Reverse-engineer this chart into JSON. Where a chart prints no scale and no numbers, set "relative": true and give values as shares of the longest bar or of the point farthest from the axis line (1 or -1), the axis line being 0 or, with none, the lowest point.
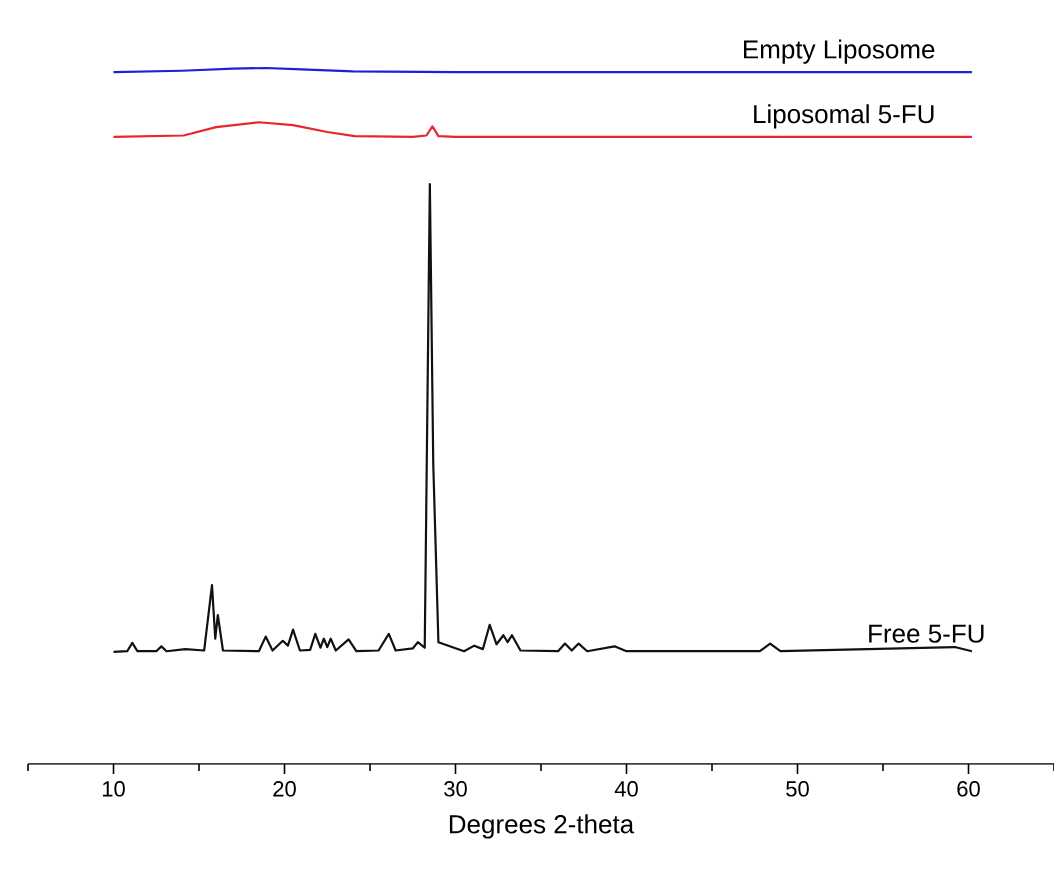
{
  "chart_data": {
    "type": "line",
    "relative": true,
    "xlabel": "Degrees 2-theta",
    "xlim": [
      5,
      65
    ],
    "xticks": [
      {
        "value": 5,
        "label": null
      },
      10,
      {
        "value": 15,
        "label": null
      },
      20,
      {
        "value": 25,
        "label": null
      },
      30,
      {
        "value": 35,
        "label": null
      },
      40,
      {
        "value": 45,
        "label": null
      },
      50,
      {
        "value": 55,
        "label": null
      },
      60,
      {
        "value": 65,
        "label": null
      }
    ],
    "grid": false,
    "legend": false,
    "marker": "none",
    "line_style": "solid",
    "series": [
      {
        "name": "Empty Liposome",
        "color": "#1f1fd6",
        "x": [
          10.0,
          14.0,
          17.0,
          18.9,
          21.0,
          24.0,
          30.0,
          40.0,
          50.0,
          60.2
        ],
        "values": [
          0.994,
          0.996,
          0.999,
          1.0,
          0.998,
          0.995,
          0.994,
          0.994,
          0.994,
          0.994
        ]
      },
      {
        "name": "Liposomal 5-FU",
        "color": "#e8262b",
        "x": [
          10.0,
          14.1,
          16.0,
          18.5,
          20.5,
          22.5,
          24.1,
          27.5,
          28.3,
          28.65,
          29.0,
          30.0,
          40.0,
          50.0,
          60.2
        ],
        "values": [
          0.901,
          0.903,
          0.915,
          0.922,
          0.918,
          0.908,
          0.902,
          0.901,
          0.903,
          0.916,
          0.902,
          0.901,
          0.901,
          0.901,
          0.901
        ]
      },
      {
        "name": "Free 5-FU",
        "color": "#111111",
        "x": [
          10.0,
          10.8,
          11.1,
          11.4,
          12.5,
          12.8,
          13.1,
          14.2,
          15.3,
          15.76,
          15.95,
          16.1,
          16.4,
          18.5,
          18.9,
          19.3,
          19.9,
          20.2,
          20.5,
          20.9,
          21.5,
          21.8,
          22.1,
          22.3,
          22.5,
          22.7,
          23.0,
          23.75,
          24.2,
          25.5,
          26.1,
          26.5,
          27.5,
          27.8,
          28.2,
          28.5,
          28.7,
          29.0,
          30.5,
          31.1,
          31.6,
          32.0,
          32.4,
          32.8,
          33.05,
          33.3,
          33.8,
          36.0,
          36.4,
          36.8,
          37.2,
          37.7,
          39.3,
          40.0,
          47.8,
          48.4,
          49.0,
          59.2,
          60.2
        ],
        "values": [
          0.161,
          0.162,
          0.174,
          0.162,
          0.162,
          0.169,
          0.162,
          0.165,
          0.163,
          0.257,
          0.18,
          0.214,
          0.163,
          0.162,
          0.183,
          0.163,
          0.177,
          0.17,
          0.193,
          0.163,
          0.164,
          0.187,
          0.167,
          0.18,
          0.168,
          0.18,
          0.163,
          0.179,
          0.162,
          0.163,
          0.187,
          0.163,
          0.166,
          0.175,
          0.167,
          0.833,
          0.43,
          0.175,
          0.162,
          0.17,
          0.165,
          0.2,
          0.172,
          0.185,
          0.175,
          0.185,
          0.163,
          0.162,
          0.173,
          0.163,
          0.173,
          0.162,
          0.169,
          0.162,
          0.162,
          0.173,
          0.162,
          0.168,
          0.162
        ]
      }
    ]
  }
}
